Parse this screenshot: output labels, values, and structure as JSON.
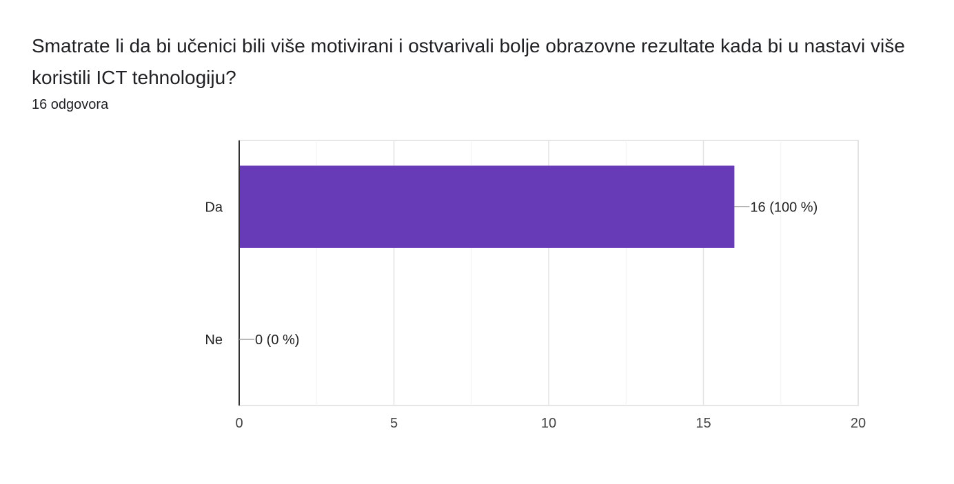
{
  "question": {
    "title": "Smatrate li da bi učenici bili više motivirani i ostvarivali bolje obrazovne rezultate kada bi u nastavi više koristili ICT tehnologiju?",
    "response_count": "16 odgovora"
  },
  "chart_data": {
    "type": "bar",
    "orientation": "horizontal",
    "categories": [
      "Da",
      "Ne"
    ],
    "values": [
      16,
      0
    ],
    "data_labels": [
      "16 (100 %)",
      "0 (0 %)"
    ],
    "xlim": [
      0,
      20
    ],
    "xticks": [
      0,
      5,
      10,
      15,
      20
    ],
    "grid": true,
    "bar_color": "#673AB7",
    "title": "",
    "xlabel": "",
    "ylabel": ""
  }
}
